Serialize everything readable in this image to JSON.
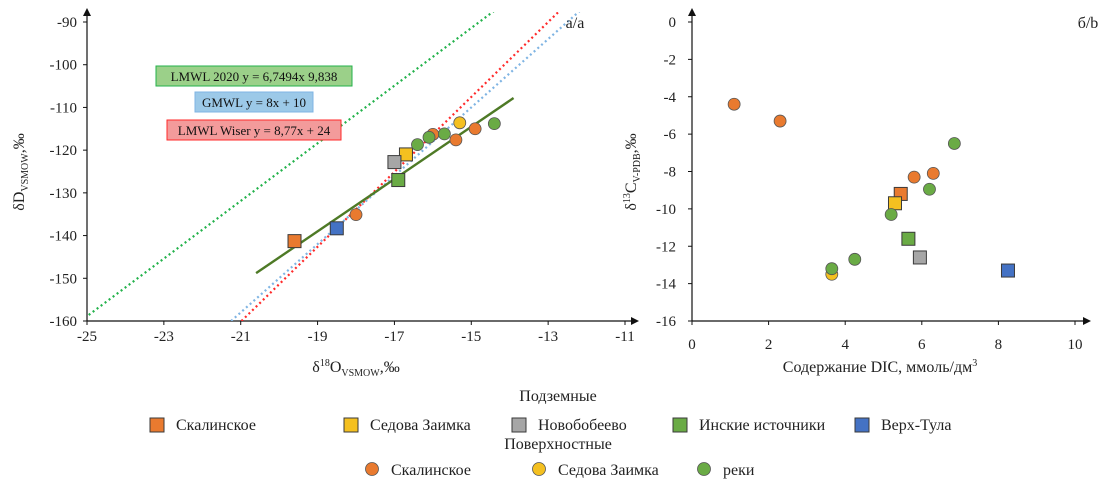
{
  "colors": {
    "orange": "#e97a2f",
    "yellow": "#f4c020",
    "gray": "#a6a6a6",
    "green": "#6aab45",
    "blue": "#4472c4",
    "dark_green": "#4e7a26",
    "red_dotted": "#ff2a2a",
    "blue_dotted": "#7fb4e3",
    "green_dotted": "#23b24b",
    "eq_green_fill": "#9bd089",
    "eq_blue_fill": "#9cc9e8",
    "eq_red_fill": "#f39b9b"
  },
  "chart_data": [
    {
      "type": "scatter",
      "panel_label": "а/a",
      "xlabel": "δ18OVSMOW,‰",
      "ylabel": "δDVSMOW,‰",
      "xlim": [
        -25,
        -11
      ],
      "ylim": [
        -160,
        -90
      ],
      "x_ticks": [
        "-25",
        "-23",
        "-21",
        "-19",
        "-17",
        "-15",
        "-13",
        "-11"
      ],
      "y_ticks": [
        "-90",
        "-100",
        "-110",
        "-120",
        "-130",
        "-140",
        "-150",
        "-160"
      ],
      "lines": [
        {
          "name": "LMWL 2020 y = 6,7494x 9,838",
          "slope": 6.7494,
          "intercept": 9.838,
          "style": "dotted",
          "color": "green_dotted",
          "box_color": "eq_green_fill"
        },
        {
          "name": "GMWL y = 8x + 10",
          "slope": 8,
          "intercept": 10,
          "style": "dotted",
          "color": "blue_dotted",
          "box_color": "eq_blue_fill"
        },
        {
          "name": "LMWL Wiser y = 8,77x + 24",
          "slope": 8.77,
          "intercept": 24,
          "style": "dotted",
          "color": "red_dotted",
          "box_color": "eq_red_fill"
        }
      ],
      "trend_line": {
        "x": [
          -20.6,
          -13.9
        ],
        "y": [
          -148.8,
          -107.8
        ],
        "color": "dark_green"
      },
      "series": [
        {
          "name": "Скалинское",
          "marker": "square",
          "color": "orange",
          "points": [
            [
              -19.6,
              -141.3
            ]
          ]
        },
        {
          "name": "Седова Заимка",
          "marker": "square",
          "color": "yellow",
          "points": [
            [
              -16.7,
              -121
            ]
          ]
        },
        {
          "name": "Новобобеево",
          "marker": "square",
          "color": "gray",
          "points": [
            [
              -17,
              -122.8
            ]
          ]
        },
        {
          "name": "Инские источники",
          "marker": "square",
          "color": "green",
          "points": [
            [
              -16.9,
              -127
            ]
          ]
        },
        {
          "name": "Верх-Тула",
          "marker": "square",
          "color": "blue",
          "points": [
            [
              -18.5,
              -138.3
            ]
          ]
        },
        {
          "name": "Скалинское",
          "marker": "circle",
          "color": "orange",
          "points": [
            [
              -18,
              -135.1
            ],
            [
              -16,
              -116.3
            ],
            [
              -15.4,
              -117.6
            ],
            [
              -14.9,
              -115
            ]
          ]
        },
        {
          "name": "Седова Заимка",
          "marker": "circle",
          "color": "yellow",
          "points": [
            [
              -15.3,
              -113.6
            ]
          ]
        },
        {
          "name": "реки",
          "marker": "circle",
          "color": "green",
          "points": [
            [
              -16.4,
              -118.7
            ],
            [
              -15.7,
              -116.2
            ],
            [
              -14.4,
              -113.8
            ],
            [
              -16.1,
              -117
            ]
          ]
        }
      ]
    },
    {
      "type": "scatter",
      "panel_label": "б/b",
      "xlabel": "Содержание DIC, ммоль/дм3",
      "ylabel": "δ13CV-PDB,‰",
      "xlim": [
        0,
        10
      ],
      "ylim": [
        -16,
        0
      ],
      "x_ticks": [
        "0",
        "2",
        "4",
        "6",
        "8",
        "10"
      ],
      "y_ticks": [
        "0",
        "-2",
        "-4",
        "-6",
        "-8",
        "-10",
        "-12",
        "-14",
        "-16"
      ],
      "series": [
        {
          "name": "Скалинское",
          "marker": "square",
          "color": "orange",
          "points": [
            [
              5.45,
              -9.2
            ]
          ]
        },
        {
          "name": "Седова Заимка",
          "marker": "square",
          "color": "yellow",
          "points": [
            [
              5.3,
              -9.7
            ]
          ]
        },
        {
          "name": "Новобобеево",
          "marker": "square",
          "color": "gray",
          "points": [
            [
              5.95,
              -12.6
            ]
          ]
        },
        {
          "name": "Инские источники",
          "marker": "square",
          "color": "green",
          "points": [
            [
              5.65,
              -11.6
            ]
          ]
        },
        {
          "name": "Верх-Тула",
          "marker": "square",
          "color": "blue",
          "points": [
            [
              8.25,
              -13.3
            ]
          ]
        },
        {
          "name": "Скалинское",
          "marker": "circle",
          "color": "orange",
          "points": [
            [
              1.1,
              -4.4
            ],
            [
              2.3,
              -5.3
            ],
            [
              5.8,
              -8.3
            ],
            [
              6.3,
              -8.1
            ]
          ]
        },
        {
          "name": "Седова Заимка",
          "marker": "circle",
          "color": "yellow",
          "points": [
            [
              3.65,
              -13.5
            ]
          ]
        },
        {
          "name": "реки",
          "marker": "circle",
          "color": "green",
          "points": [
            [
              3.65,
              -13.2
            ],
            [
              4.25,
              -12.7
            ],
            [
              5.2,
              -10.3
            ],
            [
              6.2,
              -8.95
            ],
            [
              6.85,
              -6.5
            ]
          ]
        }
      ]
    }
  ],
  "legend": {
    "group_underground": "Подземные",
    "group_surface": "Поверхностные",
    "underground": [
      {
        "label": "Скалинское",
        "color": "orange"
      },
      {
        "label": "Седова Заимка",
        "color": "yellow"
      },
      {
        "label": "Новобобеево",
        "color": "gray"
      },
      {
        "label": "Инские источники",
        "color": "green"
      },
      {
        "label": "Верх-Тула",
        "color": "blue"
      }
    ],
    "surface": [
      {
        "label": "Скалинское",
        "color": "orange"
      },
      {
        "label": "Седова Заимка",
        "color": "yellow"
      },
      {
        "label": "реки",
        "color": "green"
      }
    ]
  }
}
